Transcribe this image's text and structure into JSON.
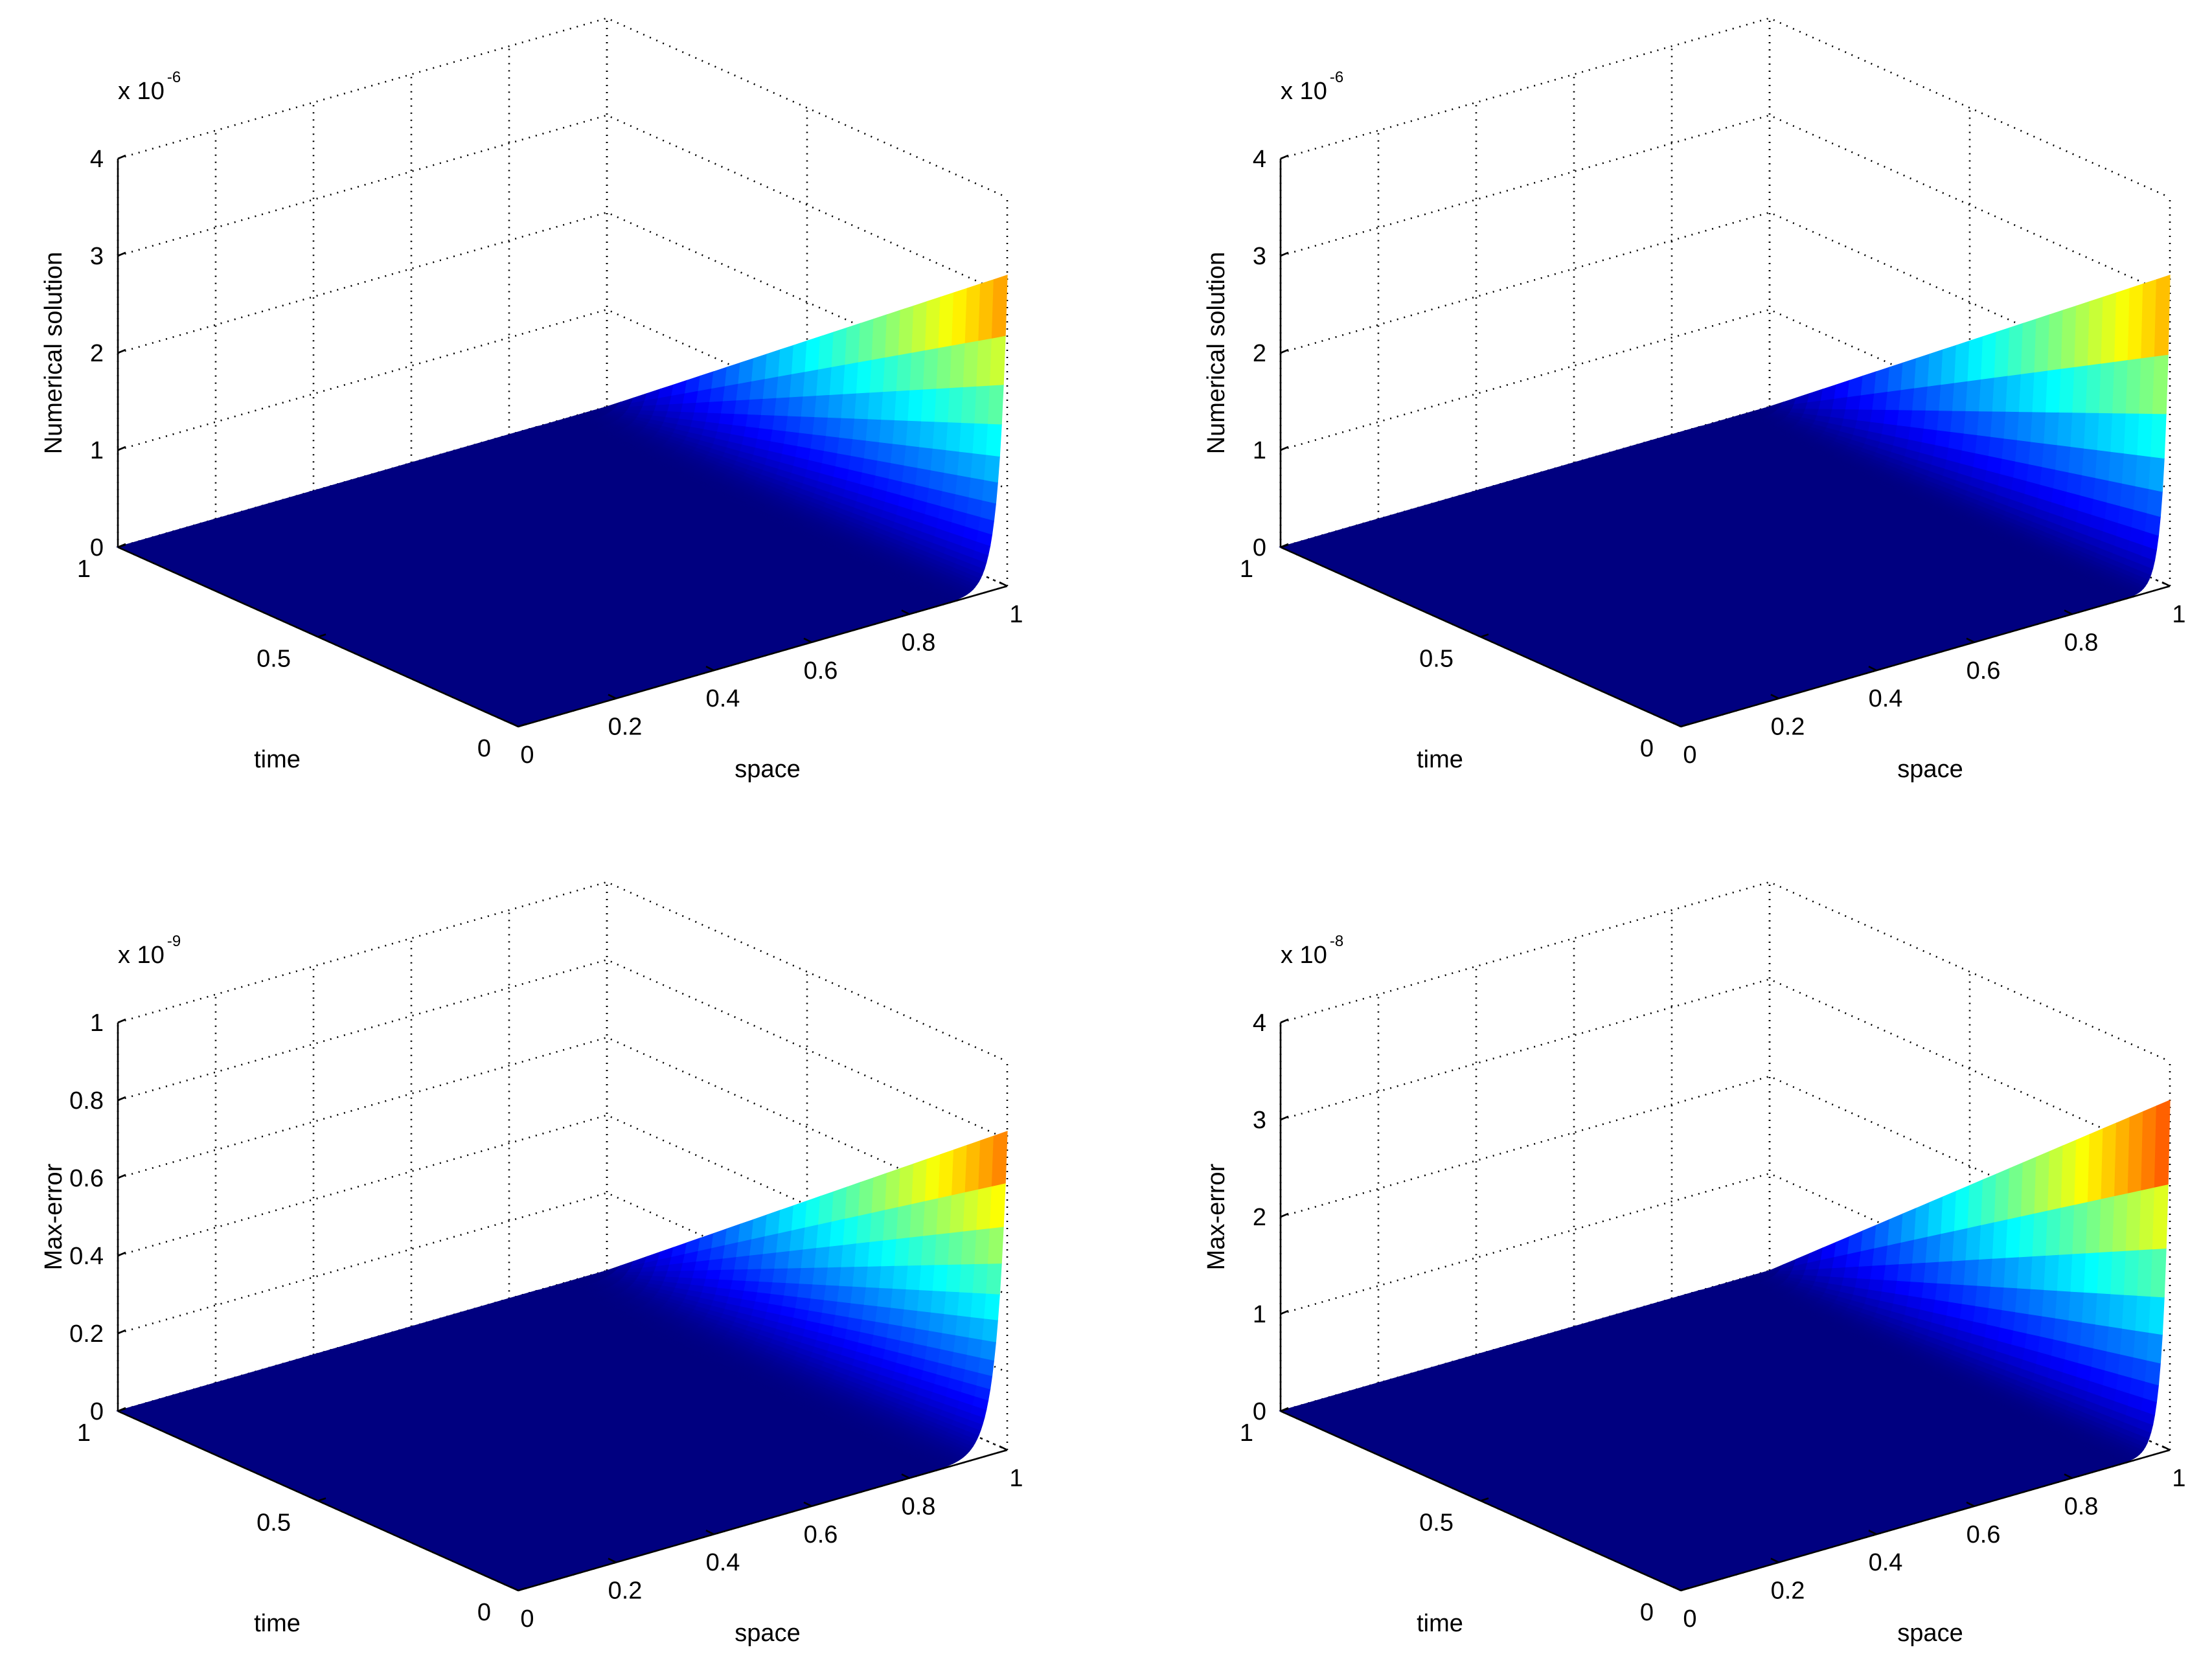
{
  "chart_data": [
    {
      "type": "surface",
      "xlabel": "space",
      "ylabel": "time",
      "zlabel": "Numerical solution",
      "zscale": {
        "base": "x 10",
        "exponent": "-6"
      },
      "x_ticks": [
        "0",
        "0.2",
        "0.4",
        "0.6",
        "0.8",
        "1"
      ],
      "y_ticks": [
        "0",
        "0.5",
        "1"
      ],
      "z_ticks": [
        "0",
        "1",
        "2",
        "3",
        "4"
      ],
      "xlim": [
        0,
        1
      ],
      "ylim": [
        0,
        1
      ],
      "zlim": [
        0,
        4
      ],
      "grid": true,
      "colormap": "jet",
      "peak": {
        "x": 1,
        "y": 0,
        "z": 3.2
      },
      "decay": 55
    },
    {
      "type": "surface",
      "xlabel": "space",
      "ylabel": "time",
      "zlabel": "Numerical solution",
      "zscale": {
        "base": "x 10",
        "exponent": "-6"
      },
      "x_ticks": [
        "0",
        "0.2",
        "0.4",
        "0.6",
        "0.8",
        "1"
      ],
      "y_ticks": [
        "0",
        "0.5",
        "1"
      ],
      "z_ticks": [
        "0",
        "1",
        "2",
        "3",
        "4"
      ],
      "xlim": [
        0,
        1
      ],
      "ylim": [
        0,
        1
      ],
      "zlim": [
        0,
        4
      ],
      "grid": true,
      "colormap": "jet",
      "peak": {
        "x": 1,
        "y": 0,
        "z": 3.2
      },
      "decay": 75
    },
    {
      "type": "surface",
      "xlabel": "space",
      "ylabel": "time",
      "zlabel": "Max-error",
      "zscale": {
        "base": "x 10",
        "exponent": "-9"
      },
      "x_ticks": [
        "0",
        "0.2",
        "0.4",
        "0.6",
        "0.8",
        "1"
      ],
      "y_ticks": [
        "0",
        "0.5",
        "1"
      ],
      "z_ticks": [
        "0",
        "0.2",
        "0.4",
        "0.6",
        "0.8",
        "1"
      ],
      "xlim": [
        0,
        1
      ],
      "ylim": [
        0,
        1
      ],
      "zlim": [
        0,
        1
      ],
      "grid": true,
      "colormap": "jet",
      "peak": {
        "x": 1,
        "y": 0,
        "z": 0.82
      },
      "decay": 45
    },
    {
      "type": "surface",
      "xlabel": "space",
      "ylabel": "time",
      "zlabel": "Max-error",
      "zscale": {
        "base": "x 10",
        "exponent": "-8"
      },
      "x_ticks": [
        "0",
        "0.2",
        "0.4",
        "0.6",
        "0.8",
        "1"
      ],
      "y_ticks": [
        "0",
        "0.5",
        "1"
      ],
      "z_ticks": [
        "0",
        "1",
        "2",
        "3",
        "4"
      ],
      "xlim": [
        0,
        1
      ],
      "ylim": [
        0,
        1
      ],
      "zlim": [
        0,
        4
      ],
      "grid": true,
      "colormap": "jet",
      "peak": {
        "x": 1,
        "y": 0,
        "z": 3.6
      },
      "decay": 70
    }
  ],
  "colors": {
    "surface_base": "#000080",
    "grid": "#000000"
  }
}
